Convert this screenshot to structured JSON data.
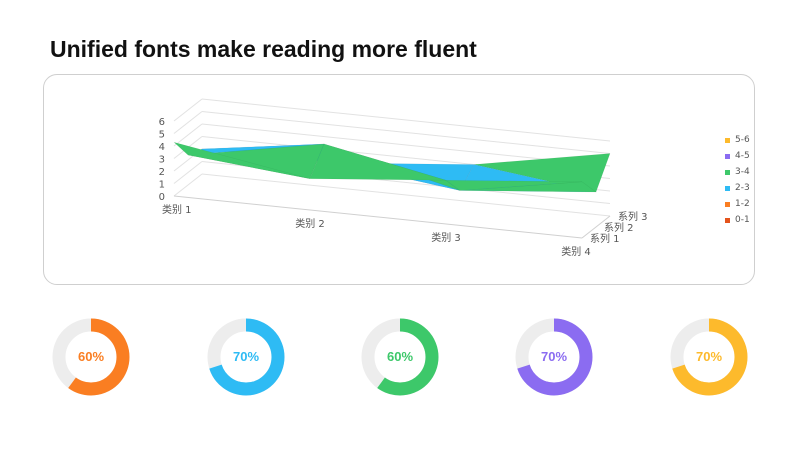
{
  "page": {
    "title": "Unified fonts make reading more fluent"
  },
  "chart_data": {
    "type": "surface",
    "title": "",
    "categories": [
      "类别 1",
      "类别 2",
      "类别 3",
      "类别 4"
    ],
    "series": [
      {
        "name": "系列 1",
        "values": [
          4.3,
          2.5,
          3.5,
          4.5
        ]
      },
      {
        "name": "系列 2",
        "values": [
          2.4,
          4.4,
          1.8,
          2.8
        ]
      },
      {
        "name": "系列 3",
        "values": [
          2.0,
          2.0,
          3.0,
          5.0
        ]
      }
    ],
    "z_ticks": [
      "0",
      "1",
      "2",
      "3",
      "4",
      "5",
      "6"
    ],
    "zlim": [
      0,
      6
    ],
    "legend": {
      "position": "right",
      "items": [
        {
          "label": "5-6",
          "color": "#FDBA2C"
        },
        {
          "label": "4-5",
          "color": "#8B6CF1"
        },
        {
          "label": "3-4",
          "color": "#3DC86A"
        },
        {
          "label": "2-3",
          "color": "#2EBBF4"
        },
        {
          "label": "1-2",
          "color": "#FA7E22"
        },
        {
          "label": "0-1",
          "color": "#E4531C"
        }
      ]
    },
    "grid": true
  },
  "donuts": [
    {
      "label": "60%",
      "value": 0.6,
      "color": "#FA7E22"
    },
    {
      "label": "70%",
      "value": 0.7,
      "color": "#2EBBF4"
    },
    {
      "label": "60%",
      "value": 0.6,
      "color": "#3DC86A"
    },
    {
      "label": "70%",
      "value": 0.7,
      "color": "#8B6CF1"
    },
    {
      "label": "70%",
      "value": 0.7,
      "color": "#FDBA2C"
    }
  ],
  "donut_track_color": "#EDEDED"
}
